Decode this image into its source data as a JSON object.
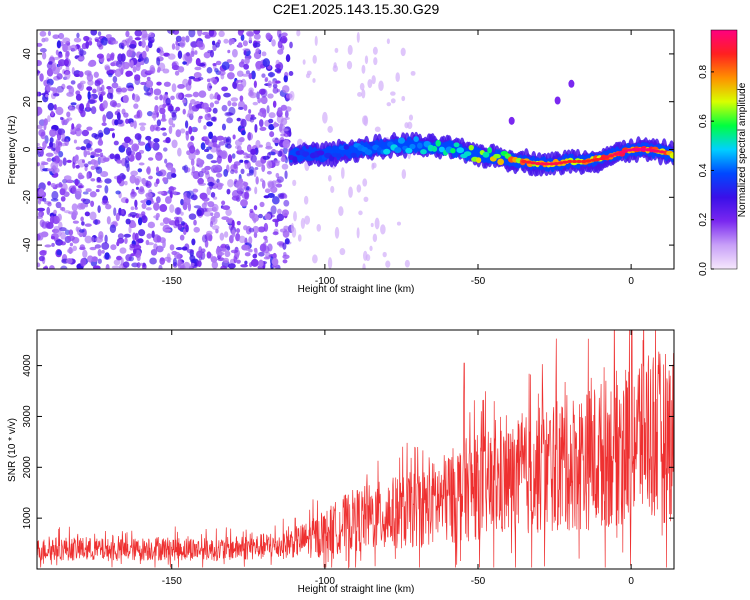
{
  "title": "C2E1.2025.143.15.30.G29",
  "colors": {
    "snr_line": "#ee3030",
    "speckle": "#8a3cf0",
    "colormap": [
      "#f6e8fc",
      "#c8a0f8",
      "#7a28f0",
      "#3a10e8",
      "#0048ff",
      "#00d0ff",
      "#00ff40",
      "#d8ff00",
      "#ff9000",
      "#ff2020",
      "#ff0080"
    ]
  },
  "chart_data": [
    {
      "type": "heatmap",
      "xlabel": "Height of straight line (km)",
      "ylabel": "Frequency (Hz)",
      "xlim": [
        -194,
        14
      ],
      "ylim": [
        -50,
        50
      ],
      "xticks": [
        -150,
        -100,
        -50,
        0
      ],
      "yticks": [
        -40,
        -20,
        0,
        20,
        40
      ],
      "colorbar": {
        "label": "Normalized spectral amplitude",
        "range": [
          0.0,
          0.97
        ],
        "ticks": [
          "0.0",
          "0.2",
          "0.4",
          "0.6",
          "0.8"
        ]
      },
      "ridge": {
        "x": [
          -111,
          -100,
          -90,
          -80,
          -75,
          -70,
          -65,
          -60,
          -55,
          -50,
          -45,
          -40,
          -35,
          -30,
          -25,
          -20,
          -15,
          -10,
          -5,
          0,
          5,
          10,
          14
        ],
        "frequency": [
          -2,
          -2,
          0,
          1,
          2,
          2,
          1,
          1,
          -1,
          -2,
          -3,
          -4,
          -5,
          -6,
          -6,
          -5,
          -5,
          -4,
          -2,
          0,
          0,
          -1,
          -2
        ],
        "amplitude": [
          0.35,
          0.4,
          0.45,
          0.5,
          0.5,
          0.5,
          0.55,
          0.55,
          0.6,
          0.7,
          0.75,
          0.8,
          0.85,
          0.9,
          0.9,
          0.85,
          0.85,
          0.85,
          0.9,
          0.95,
          0.95,
          0.9,
          0.75
        ]
      },
      "noise_region_x": [
        -194,
        -111
      ],
      "noise_amplitude": [
        0.05,
        0.25
      ]
    },
    {
      "type": "line",
      "xlabel": "Height of straight line (km)",
      "ylabel": "SNR (10 * v/v)",
      "xlim": [
        -194,
        14
      ],
      "ylim": [
        0,
        4700
      ],
      "xticks": [
        -150,
        -100,
        -50,
        0
      ],
      "yticks": [
        1000,
        2000,
        3000,
        4000
      ],
      "series": [
        {
          "x": [
            -194,
            -185,
            -175,
            -165,
            -155,
            -145,
            -135,
            -125,
            -115,
            -110,
            -105,
            -100,
            -95,
            -90,
            -85,
            -80,
            -75,
            -70,
            -65,
            -60,
            -55,
            -50,
            -45,
            -40,
            -35,
            -30,
            -25,
            -20,
            -15,
            -10,
            -5,
            0,
            5,
            10,
            14
          ],
          "values": [
            350,
            380,
            360,
            350,
            380,
            370,
            360,
            400,
            430,
            500,
            560,
            650,
            800,
            900,
            950,
            1000,
            1050,
            1100,
            1200,
            1300,
            1450,
            1500,
            1550,
            1600,
            1700,
            1800,
            1900,
            1950,
            2000,
            2100,
            2200,
            2350,
            2600,
            2400,
            2500
          ]
        }
      ],
      "peaks": [
        {
          "x": -54.5,
          "y": 4050
        },
        {
          "x": -29,
          "y": 4030
        },
        {
          "x": 8,
          "y": 4680
        },
        {
          "x": 12,
          "y": 3300
        }
      ]
    }
  ]
}
